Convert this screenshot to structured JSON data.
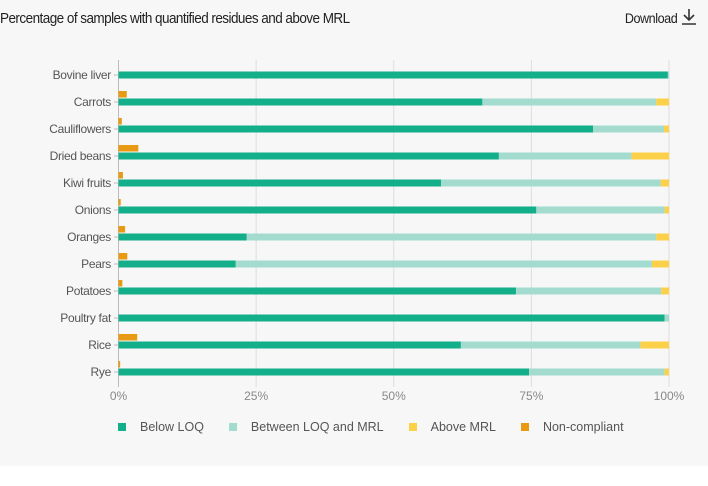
{
  "header": {
    "title": "Percentage of samples with quantified residues and above MRL",
    "download_label": "Download",
    "download_icon": "download-icon"
  },
  "colors": {
    "below_loq": "#13ae8a",
    "between": "#a3dbcf",
    "above_mrl": "#fdd04a",
    "non_compliant": "#e99a13",
    "grid": "#dddddd"
  },
  "chart_data": {
    "type": "bar",
    "orientation": "horizontal",
    "stacked": true,
    "title": "Percentage of samples with quantified residues and above MRL",
    "categories": [
      "Bovine liver",
      "Carrots",
      "Cauliflowers",
      "Dried beans",
      "Kiwi fruits",
      "Onions",
      "Oranges",
      "Pears",
      "Potatoes",
      "Poultry fat",
      "Rice",
      "Rye"
    ],
    "series": [
      {
        "name": "Below LOQ",
        "values": [
          99.8,
          66.1,
          86.2,
          69.1,
          58.6,
          75.9,
          23.3,
          21.3,
          72.2,
          99.2,
          62.2,
          74.6
        ]
      },
      {
        "name": "Between LOQ and MRL",
        "values": [
          0.2,
          31.6,
          12.9,
          24.1,
          39.9,
          23.3,
          74.4,
          75.6,
          26.4,
          0.8,
          32.6,
          24.6
        ]
      },
      {
        "name": "Above MRL",
        "values": [
          0,
          2.3,
          0.9,
          6.8,
          1.5,
          0.8,
          2.3,
          3.1,
          1.4,
          0,
          5.2,
          0.8
        ]
      },
      {
        "name": "Non-compliant",
        "values": [
          0,
          1.5,
          0.6,
          3.6,
          0.8,
          0.4,
          1.2,
          1.6,
          0.7,
          0,
          3.4,
          0.3
        ]
      }
    ],
    "xticks": [
      "0%",
      "25%",
      "50%",
      "75%",
      "100%"
    ],
    "xlim": [
      0,
      100
    ],
    "grid": true,
    "legend_position": "bottom"
  }
}
